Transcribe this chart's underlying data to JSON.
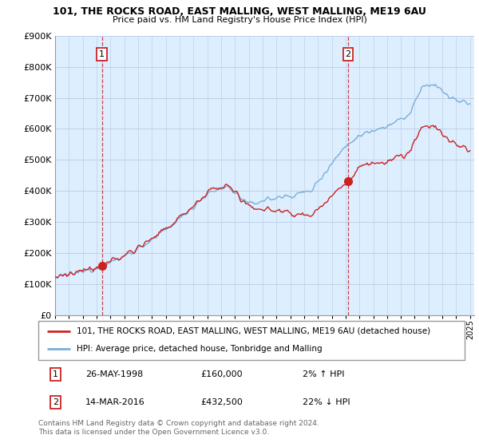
{
  "title": "101, THE ROCKS ROAD, EAST MALLING, WEST MALLING, ME19 6AU",
  "subtitle": "Price paid vs. HM Land Registry's House Price Index (HPI)",
  "ylim": [
    0,
    900000
  ],
  "yticks": [
    0,
    100000,
    200000,
    300000,
    400000,
    500000,
    600000,
    700000,
    800000,
    900000
  ],
  "ytick_labels": [
    "£0",
    "£100K",
    "£200K",
    "£300K",
    "£400K",
    "£500K",
    "£600K",
    "£700K",
    "£800K",
    "£900K"
  ],
  "hpi_color": "#7aaed6",
  "property_color": "#cc2222",
  "plot_bg": "#ddeeff",
  "marker1_year": 1998.38,
  "marker2_year": 2016.19,
  "marker1_price": 160000,
  "marker2_price": 432500,
  "marker1_label": "1",
  "marker2_label": "2",
  "marker1_date": "26-MAY-1998",
  "marker2_date": "14-MAR-2016",
  "marker1_hpi_diff": "2% ↑ HPI",
  "marker2_hpi_diff": "22% ↓ HPI",
  "legend_property": "101, THE ROCKS ROAD, EAST MALLING, WEST MALLING, ME19 6AU (detached house)",
  "legend_hpi": "HPI: Average price, detached house, Tonbridge and Malling",
  "footer": "Contains HM Land Registry data © Crown copyright and database right 2024.\nThis data is licensed under the Open Government Licence v3.0.",
  "grid_color": "#c0d0e8",
  "vline_color": "#cc2222"
}
